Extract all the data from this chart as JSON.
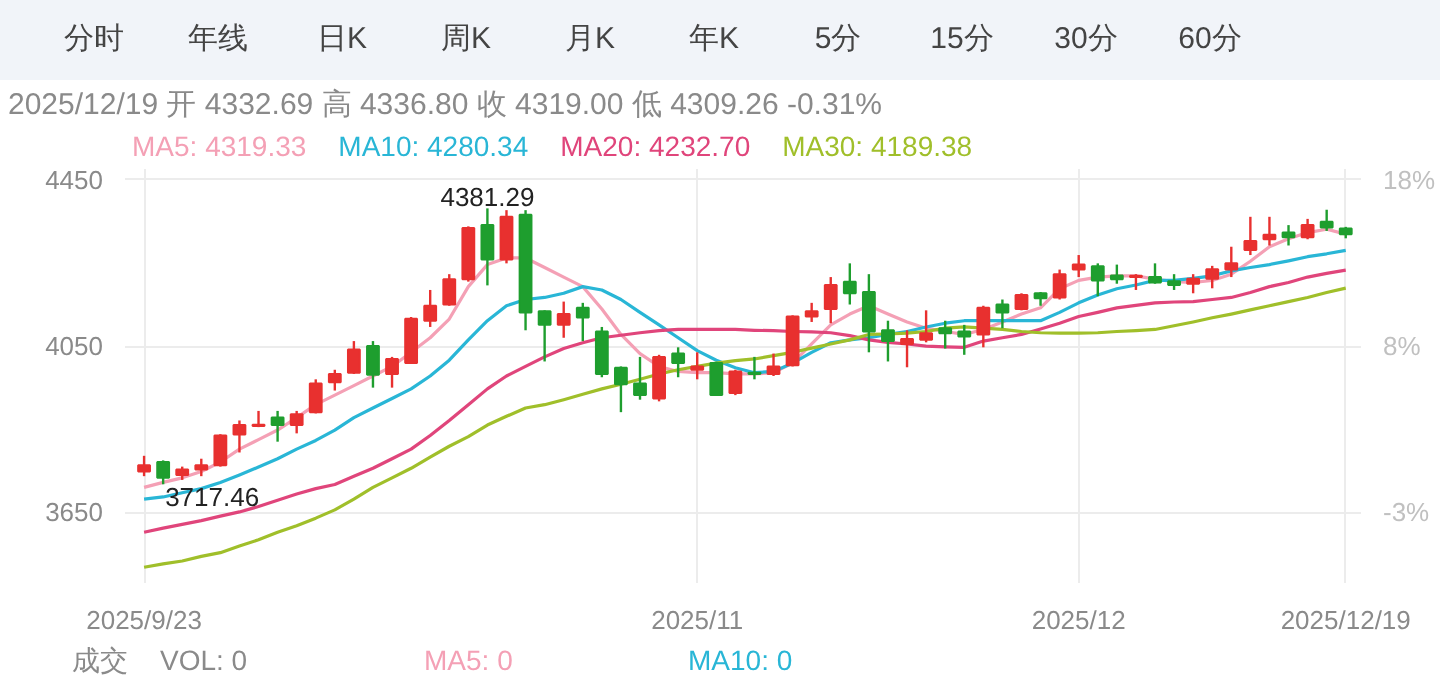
{
  "chart_data": {
    "type": "candlestick",
    "title": "2025/12/19 开 4332.69 高 4336.80 收 4319.00 低 4309.26 -0.31%",
    "categories": [
      "2025/9/23",
      null,
      null,
      null,
      null,
      null,
      null,
      null,
      null,
      null,
      null,
      null,
      null,
      null,
      null,
      null,
      null,
      null,
      null,
      null,
      null,
      null,
      null,
      null,
      null,
      null,
      null,
      null,
      null,
      "2025/11",
      null,
      null,
      null,
      null,
      null,
      null,
      null,
      null,
      null,
      null,
      null,
      null,
      null,
      null,
      null,
      null,
      null,
      null,
      null,
      "2025/12",
      null,
      null,
      null,
      null,
      null,
      null,
      null,
      null,
      null,
      null,
      null,
      null,
      null,
      "2025/12/19"
    ],
    "ohlc": [
      [
        3748,
        3786,
        3737,
        3763
      ],
      [
        3771,
        3775,
        3717.46,
        3733
      ],
      [
        3740,
        3760,
        3728,
        3753
      ],
      [
        3753,
        3779,
        3737,
        3763
      ],
      [
        3763,
        3838,
        3760,
        3835
      ],
      [
        3837,
        3871,
        3794,
        3860
      ],
      [
        3858,
        3894,
        3855,
        3861
      ],
      [
        3878,
        3894,
        3820,
        3860
      ],
      [
        3860,
        3894,
        3840,
        3886
      ],
      [
        3891,
        3970,
        3888,
        3960
      ],
      [
        3963,
        3993,
        3943,
        3983
      ],
      [
        3986,
        4062,
        3983,
        4042
      ],
      [
        4050,
        4062,
        3950,
        3981
      ],
      [
        3983,
        4024,
        3950,
        4019
      ],
      [
        4009,
        4120,
        4007,
        4116
      ],
      [
        4111,
        4185,
        4096,
        4147
      ],
      [
        4150,
        4223,
        4147,
        4211
      ],
      [
        4211,
        4338,
        4205,
        4334
      ],
      [
        4341,
        4381.29,
        4196,
        4258
      ],
      [
        4258,
        4377,
        4249,
        4361
      ],
      [
        4366,
        4377,
        4088,
        4131
      ],
      [
        4134,
        4136,
        4013,
        4101
      ],
      [
        4101,
        4157,
        4070,
        4127
      ],
      [
        4142,
        4154,
        4062,
        4119
      ],
      [
        4085,
        4096,
        3975,
        3983
      ],
      [
        3998,
        4001,
        3891,
        3958
      ],
      [
        3960,
        4024,
        3921,
        3932
      ],
      [
        3924,
        4029,
        3917,
        4024
      ],
      [
        4032,
        4047,
        3975,
        4009
      ],
      [
        3993,
        4035,
        3970,
        4001
      ],
      [
        4009,
        4012,
        3930,
        3932
      ],
      [
        3937,
        3993,
        3932,
        3989
      ],
      [
        3986,
        4024,
        3970,
        3983
      ],
      [
        3983,
        4032,
        3978,
        4001
      ],
      [
        4004,
        4124,
        4001,
        4121
      ],
      [
        4121,
        4154,
        4108,
        4134
      ],
      [
        4139,
        4216,
        4105,
        4197
      ],
      [
        4205,
        4249,
        4150,
        4177
      ],
      [
        4180,
        4223,
        4035,
        4085
      ],
      [
        4088,
        4111,
        4013,
        4062
      ],
      [
        4055,
        4088,
        3999,
        4067
      ],
      [
        4065,
        4136,
        4059,
        4081
      ],
      [
        4093,
        4111,
        4044,
        4081
      ],
      [
        4085,
        4101,
        4029,
        4073
      ],
      [
        4078,
        4147,
        4047,
        4142
      ],
      [
        4150,
        4162,
        4093,
        4131
      ],
      [
        4139,
        4177,
        4136,
        4173
      ],
      [
        4177,
        4180,
        4147,
        4165
      ],
      [
        4167,
        4234,
        4162,
        4223
      ],
      [
        4234,
        4269,
        4216,
        4246
      ],
      [
        4242,
        4249,
        4170,
        4208
      ],
      [
        4220,
        4246,
        4200,
        4211
      ],
      [
        4216,
        4223,
        4185,
        4219
      ],
      [
        4216,
        4249,
        4200,
        4203
      ],
      [
        4206,
        4223,
        4185,
        4197
      ],
      [
        4200,
        4223,
        4177,
        4212
      ],
      [
        4212,
        4243,
        4189,
        4235
      ],
      [
        4234,
        4289,
        4216,
        4249
      ],
      [
        4281,
        4361,
        4269,
        4303
      ],
      [
        4307,
        4361,
        4292,
        4318
      ],
      [
        4323,
        4341,
        4292,
        4312
      ],
      [
        4312,
        4356,
        4307,
        4341
      ],
      [
        4349,
        4378,
        4327,
        4335
      ],
      [
        4332.69,
        4336.8,
        4309.26,
        4319.0
      ]
    ],
    "colors": [
      "#e8302f",
      "#1e9e2e",
      "#e8302f",
      "#e8302f",
      "#e8302f",
      "#e8302f",
      "#e8302f",
      "#1e9e2e",
      "#e8302f",
      "#e8302f",
      "#e8302f",
      "#e8302f",
      "#1e9e2e",
      "#e8302f",
      "#e8302f",
      "#e8302f",
      "#e8302f",
      "#e8302f",
      "#1e9e2e",
      "#e8302f",
      "#1e9e2e",
      "#1e9e2e",
      "#e8302f",
      "#1e9e2e",
      "#1e9e2e",
      "#1e9e2e",
      "#1e9e2e",
      "#e8302f",
      "#1e9e2e",
      "#e8302f",
      "#1e9e2e",
      "#e8302f",
      "#1e9e2e",
      "#e8302f",
      "#e8302f",
      "#e8302f",
      "#e8302f",
      "#1e9e2e",
      "#1e9e2e",
      "#1e9e2e",
      "#e8302f",
      "#e8302f",
      "#1e9e2e",
      "#1e9e2e",
      "#e8302f",
      "#1e9e2e",
      "#e8302f",
      "#1e9e2e",
      "#e8302f",
      "#e8302f",
      "#1e9e2e",
      "#1e9e2e",
      "#e8302f",
      "#1e9e2e",
      "#1e9e2e",
      "#e8302f",
      "#e8302f",
      "#e8302f",
      "#e8302f",
      "#e8302f",
      "#1e9e2e",
      "#e8302f",
      "#1e9e2e",
      "#1e9e2e"
    ],
    "series": [
      {
        "type": "line",
        "name": "MA5: 4319.33",
        "color": "#f4a0b5",
        "values": [
          3710,
          3722,
          3733,
          3748,
          3771,
          3802,
          3825,
          3848,
          3878,
          3909,
          3932,
          3955,
          3978,
          4001,
          4035,
          4070,
          4115,
          4193,
          4246,
          4262,
          4262,
          4239,
          4216,
          4193,
          4139,
          4078,
          4032,
          4001,
          3989,
          3986,
          3986,
          3983,
          3983,
          3986,
          4009,
          4055,
          4101,
          4127,
          4147,
          4127,
          4108,
          4093,
          4085,
          4078,
          4090,
          4108,
          4127,
          4142,
          4188,
          4208,
          4216,
          4219,
          4219,
          4211,
          4205,
          4203,
          4208,
          4223,
          4254,
          4289,
          4308,
          4323,
          4331,
          4319.33
        ]
      },
      {
        "type": "line",
        "name": "MA10: 4280.34",
        "color": "#29b6d6",
        "values": [
          3682,
          3687,
          3697,
          3707,
          3722,
          3740,
          3759,
          3779,
          3802,
          3823,
          3848,
          3878,
          3901,
          3924,
          3947,
          3978,
          4016,
          4065,
          4111,
          4147,
          4162,
          4167,
          4177,
          4193,
          4185,
          4162,
          4131,
          4101,
          4070,
          4039,
          4016,
          3998,
          3986,
          3989,
          4009,
          4035,
          4058,
          4065,
          4070,
          4078,
          4085,
          4096,
          4105,
          4111,
          4111,
          4111,
          4111,
          4111,
          4131,
          4154,
          4173,
          4188,
          4197,
          4208,
          4208,
          4213,
          4219,
          4231,
          4239,
          4246,
          4255,
          4265,
          4272,
          4280.34
        ]
      },
      {
        "type": "line",
        "name": "MA20: 4232.70",
        "color": "#e0457b",
        "values": [
          3602,
          3612,
          3621,
          3630,
          3641,
          3651,
          3664,
          3679,
          3694,
          3707,
          3717,
          3737,
          3756,
          3779,
          3802,
          3835,
          3871,
          3909,
          3947,
          3978,
          4001,
          4024,
          4044,
          4058,
          4070,
          4076,
          4082,
          4087,
          4090,
          4090,
          4090,
          4090,
          4088,
          4087,
          4085,
          4084,
          4082,
          4075,
          4065,
          4059,
          4055,
          4050,
          4048,
          4047,
          4062,
          4070,
          4078,
          4091,
          4105,
          4121,
          4131,
          4142,
          4148,
          4154,
          4156,
          4157,
          4162,
          4167,
          4179,
          4193,
          4203,
          4216,
          4225,
          4232.7
        ]
      },
      {
        "type": "line",
        "name": "MA30: 4189.38",
        "color": "#a0bf2a",
        "values": [
          3518,
          3526,
          3533,
          3544,
          3553,
          3569,
          3584,
          3602,
          3618,
          3636,
          3656,
          3682,
          3710,
          3733,
          3756,
          3783,
          3809,
          3832,
          3860,
          3881,
          3901,
          3909,
          3921,
          3934,
          3947,
          3958,
          3970,
          3983,
          3993,
          4001,
          4009,
          4015,
          4019,
          4027,
          4035,
          4045,
          4055,
          4065,
          4078,
          4079,
          4081,
          4085,
          4093,
          4096,
          4093,
          4090,
          4085,
          4082,
          4081,
          4081,
          4082,
          4085,
          4087,
          4090,
          4099,
          4108,
          4118,
          4127,
          4137,
          4147,
          4157,
          4167,
          4179,
          4189.38
        ]
      }
    ],
    "ylim": [
      3480,
      4476
    ],
    "yticks": [
      3650,
      4050,
      4450
    ],
    "y2lim": [
      -7.45,
      19.04
    ],
    "y2ticks": [
      {
        "value": -2.93,
        "label": "-3%"
      },
      {
        "value": 7.71,
        "label": "8%"
      },
      {
        "value": 18.35,
        "label": "18%"
      }
    ],
    "grid": true,
    "legend": "top left",
    "annotations": [
      "分时 年线 日K 周K 月K 年K 5分 15分 30分 60分",
      "成交",
      "VOL: 0",
      "MA5: 0",
      "MA10: 0",
      {
        "text": "4381.29",
        "y": 4381.29
      },
      {
        "text": "3717.46",
        "y": 3717.46
      }
    ]
  }
}
